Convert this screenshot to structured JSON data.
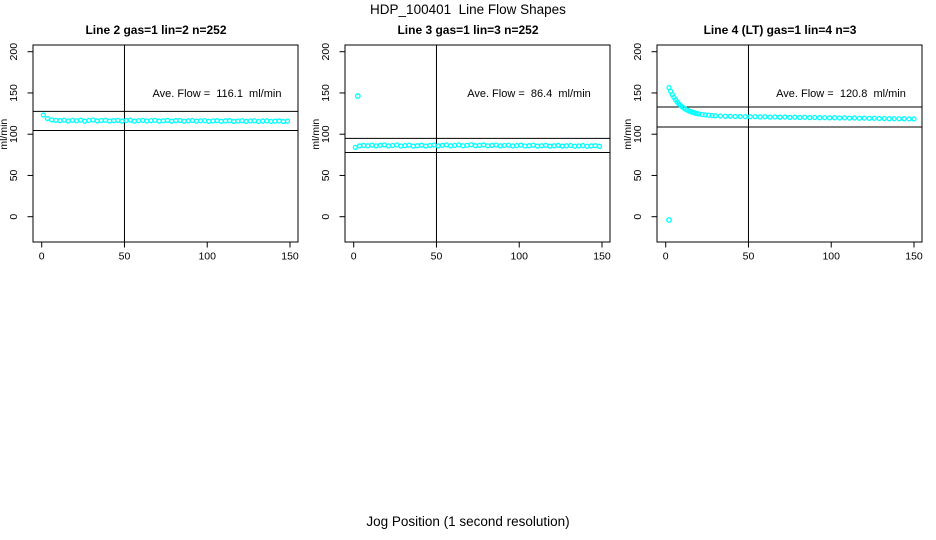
{
  "page_title": "HDP_100401  Line Flow Shapes",
  "x_axis_title": "Jog Position (1 second resolution)",
  "colors": {
    "points": "#00ffff",
    "axis": "#000000",
    "background": "#ffffff"
  },
  "chart_data": [
    {
      "type": "scatter",
      "title": "Line 2 gas=1 lin=2 n=252",
      "ylabel": "ml/min",
      "annotation": "Ave. Flow =  116.1  ml/min",
      "ave_flow_ml_min": 116.1,
      "n": 252,
      "xlim": [
        0,
        150
      ],
      "ylim": [
        0,
        200
      ],
      "xticks": [
        0,
        50,
        100,
        150
      ],
      "yticks": [
        0,
        50,
        100,
        150,
        200
      ],
      "grid": false,
      "legend": false,
      "vline_x": 50,
      "hlines": [
        127.7,
        104.5
      ],
      "x": [
        1,
        3.5,
        6,
        8.5,
        11,
        13.5,
        16,
        18.5,
        21,
        23.5,
        26,
        28.5,
        31,
        33.5,
        36,
        38.5,
        41,
        43.5,
        46,
        48.5,
        51,
        53.5,
        56,
        58.5,
        61,
        63.5,
        66,
        68.5,
        71,
        73.5,
        76,
        78.5,
        81,
        83.5,
        86,
        88.5,
        91,
        93.5,
        96,
        98.5,
        101,
        103.5,
        106,
        108.5,
        111,
        113.5,
        116,
        118.5,
        121,
        123.5,
        126,
        128.5,
        131,
        133.5,
        136,
        138.5,
        141,
        143.5,
        146,
        148.5
      ],
      "y": [
        123.3,
        119.0,
        117.4,
        116.8,
        116.5,
        117.1,
        116.0,
        116.8,
        116.3,
        117.0,
        115.8,
        116.7,
        117.2,
        116.1,
        116.6,
        116.9,
        116.0,
        116.5,
        116.8,
        115.9,
        116.6,
        117.0,
        115.8,
        116.4,
        116.7,
        116.0,
        116.5,
        116.8,
        115.9,
        116.3,
        116.7,
        115.8,
        116.4,
        116.6,
        115.7,
        116.2,
        116.6,
        115.8,
        116.3,
        116.5,
        115.6,
        116.1,
        116.4,
        115.7,
        116.2,
        116.4,
        115.5,
        116.0,
        116.3,
        115.6,
        116.0,
        116.3,
        115.4,
        115.9,
        116.2,
        115.5,
        115.8,
        116.1,
        115.4,
        115.8
      ],
      "outliers": []
    },
    {
      "type": "scatter",
      "title": "Line 3 gas=1 lin=3 n=252",
      "ylabel": "ml/min",
      "annotation": "Ave. Flow =  86.4  ml/min",
      "ave_flow_ml_min": 86.4,
      "n": 252,
      "xlim": [
        0,
        150
      ],
      "ylim": [
        0,
        200
      ],
      "xticks": [
        0,
        50,
        100,
        150
      ],
      "yticks": [
        0,
        50,
        100,
        150,
        200
      ],
      "grid": false,
      "legend": false,
      "vline_x": 50,
      "hlines": [
        95.0,
        77.8
      ],
      "x": [
        1,
        3.5,
        6,
        8.5,
        11,
        13.5,
        16,
        18.5,
        21,
        23.5,
        26,
        28.5,
        31,
        33.5,
        36,
        38.5,
        41,
        43.5,
        46,
        48.5,
        51,
        53.5,
        56,
        58.5,
        61,
        63.5,
        66,
        68.5,
        71,
        73.5,
        76,
        78.5,
        81,
        83.5,
        86,
        88.5,
        91,
        93.5,
        96,
        98.5,
        101,
        103.5,
        106,
        108.5,
        111,
        113.5,
        116,
        118.5,
        121,
        123.5,
        126,
        128.5,
        131,
        133.5,
        136,
        138.5,
        141,
        143.5,
        146,
        148.5
      ],
      "y": [
        84.0,
        85.8,
        86.5,
        86.0,
        86.8,
        85.9,
        86.4,
        87.0,
        85.8,
        86.3,
        86.9,
        85.7,
        86.2,
        86.8,
        85.6,
        86.1,
        86.7,
        85.7,
        86.3,
        86.9,
        85.8,
        86.4,
        87.0,
        85.9,
        86.5,
        87.1,
        86.0,
        86.6,
        87.2,
        86.1,
        86.5,
        87.0,
        86.0,
        86.4,
        86.9,
        85.9,
        86.3,
        86.8,
        85.8,
        86.2,
        86.7,
        85.7,
        86.1,
        86.6,
        85.6,
        86.0,
        86.5,
        85.5,
        86.0,
        86.4,
        85.5,
        85.9,
        86.3,
        85.4,
        85.8,
        86.2,
        85.4,
        85.8,
        86.1,
        85.3
      ],
      "outliers": [
        [
          2.5,
          146.2
        ]
      ]
    },
    {
      "type": "scatter",
      "title": "Line 4 (LT) gas=1 lin=4 n=3",
      "ylabel": "ml/min",
      "annotation": "Ave. Flow =  120.8  ml/min",
      "ave_flow_ml_min": 120.8,
      "n": 3,
      "xlim": [
        0,
        150
      ],
      "ylim": [
        0,
        200
      ],
      "xticks": [
        0,
        50,
        100,
        150
      ],
      "yticks": [
        0,
        50,
        100,
        150,
        200
      ],
      "grid": false,
      "legend": false,
      "vline_x": 50,
      "hlines": [
        132.9,
        108.7
      ],
      "x": [
        2,
        3,
        4,
        5,
        6,
        7,
        8,
        9,
        10,
        11,
        12,
        13,
        14,
        15,
        16,
        17,
        18,
        19,
        20,
        22,
        24,
        26,
        28,
        30,
        33,
        36,
        39,
        42,
        45,
        48,
        51,
        54,
        57,
        60,
        63,
        66,
        69,
        72,
        75,
        78,
        81,
        84,
        87,
        90,
        93,
        96,
        99,
        102,
        105,
        108,
        111,
        114,
        117,
        120,
        123,
        126,
        129,
        132,
        135,
        138,
        141,
        144,
        147,
        150
      ],
      "y": [
        156.5,
        151.9,
        148.0,
        144.6,
        141.6,
        139.0,
        136.8,
        134.8,
        133.1,
        131.6,
        130.4,
        129.3,
        128.3,
        127.5,
        126.7,
        126.1,
        125.5,
        125.0,
        124.6,
        123.9,
        123.4,
        123.0,
        122.6,
        122.4,
        122.1,
        121.8,
        121.7,
        121.5,
        121.4,
        121.3,
        121.2,
        121.3,
        120.9,
        121.1,
        120.7,
        120.9,
        120.6,
        120.8,
        120.4,
        120.6,
        120.3,
        120.5,
        120.1,
        120.3,
        120.0,
        120.1,
        119.8,
        120.0,
        119.6,
        119.8,
        119.5,
        119.7,
        119.3,
        119.5,
        119.2,
        119.3,
        119.0,
        119.1,
        118.8,
        118.9,
        118.7,
        118.8,
        118.5,
        118.6
      ],
      "outliers": [
        [
          2,
          -4
        ]
      ]
    }
  ]
}
